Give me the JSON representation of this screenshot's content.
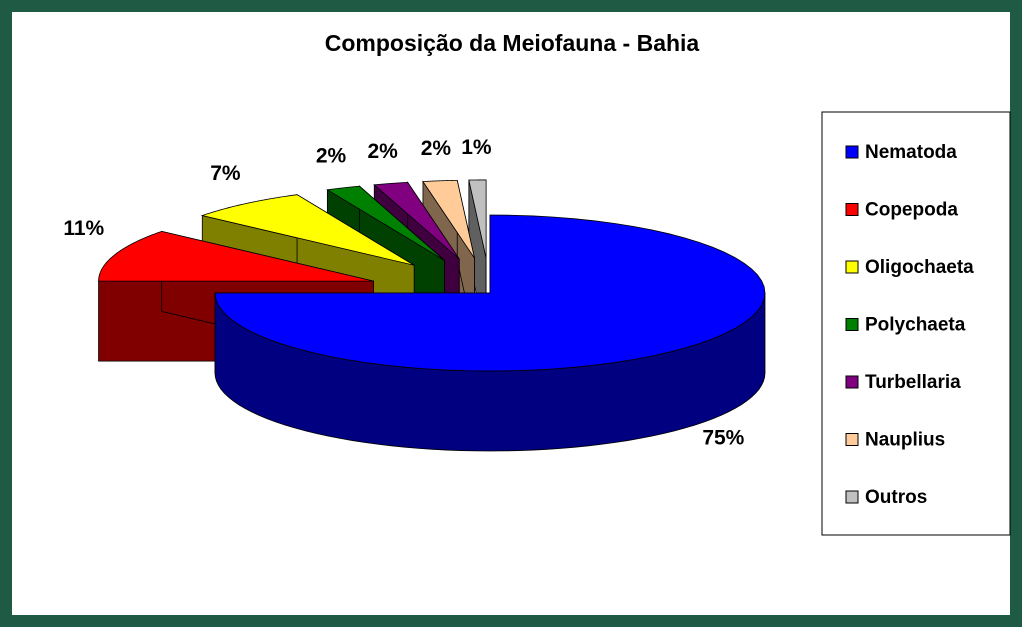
{
  "chart_data": {
    "type": "pie",
    "title": "Composição da Meiofauna - Bahia",
    "categories": [
      "Nematoda",
      "Copepoda",
      "Oligochaeta",
      "Polychaeta",
      "Turbellaria",
      "Nauplius",
      "Outros"
    ],
    "values": [
      75,
      11,
      7,
      2,
      2,
      2,
      1
    ],
    "value_labels": [
      "75%",
      "11%",
      "7%",
      "2%",
      "2%",
      "2%",
      "1%"
    ],
    "colors": [
      "#0000ff",
      "#ff0000",
      "#ffff00",
      "#008000",
      "#800080",
      "#ffcc99",
      "#c0c0c0"
    ],
    "legend": "right",
    "three_d": true,
    "exploded": true
  }
}
